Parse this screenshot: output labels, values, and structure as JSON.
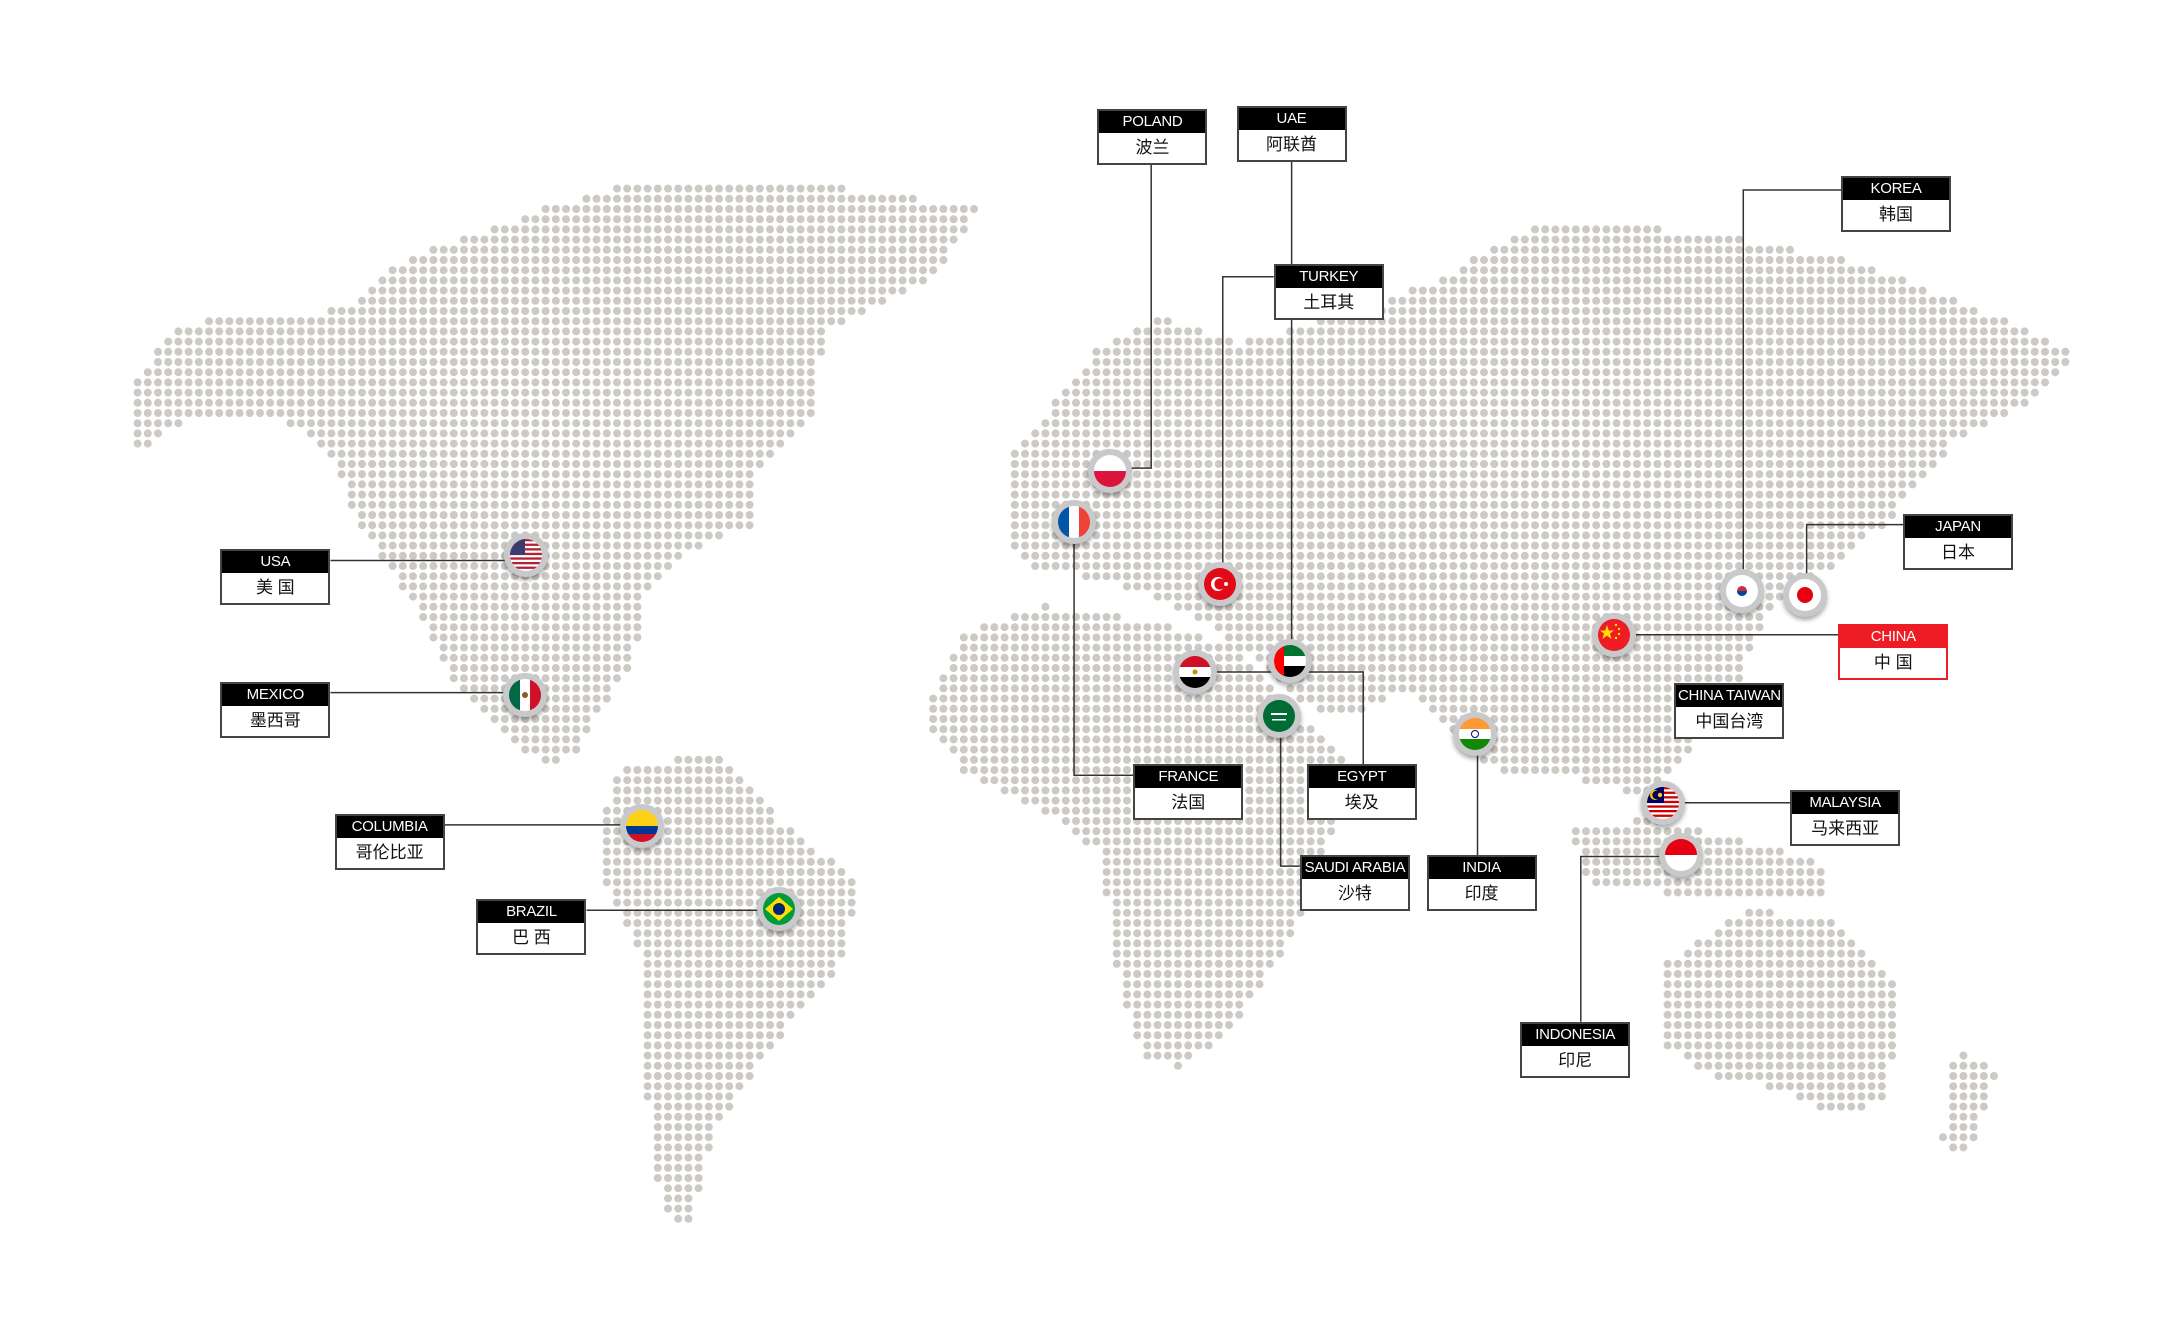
{
  "colors": {
    "dots": "#cdc9c4",
    "label_header": "#000000",
    "highlight": "#ee1c25",
    "pin_ring": "#c9c9cb"
  },
  "countries": [
    {
      "id": "usa",
      "en": "USA",
      "zh": "美 国",
      "icon": "flag-usa-icon"
    },
    {
      "id": "mexico",
      "en": "MEXICO",
      "zh": "墨西哥",
      "icon": "flag-mexico-icon"
    },
    {
      "id": "columbia",
      "en": "COLUMBIA",
      "zh": "哥伦比亚",
      "icon": "flag-colombia-icon"
    },
    {
      "id": "brazil",
      "en": "BRAZIL",
      "zh": "巴 西",
      "icon": "flag-brazil-icon"
    },
    {
      "id": "poland",
      "en": "POLAND",
      "zh": "波兰",
      "icon": "flag-poland-icon"
    },
    {
      "id": "uae",
      "en": "UAE",
      "zh": "阿联酋",
      "icon": "flag-uae-icon"
    },
    {
      "id": "turkey",
      "en": "TURKEY",
      "zh": "土耳其",
      "icon": "flag-turkey-icon"
    },
    {
      "id": "france",
      "en": "FRANCE",
      "zh": "法国",
      "icon": "flag-france-icon"
    },
    {
      "id": "egypt",
      "en": "EGYPT",
      "zh": "埃及",
      "icon": "flag-egypt-icon"
    },
    {
      "id": "saudi",
      "en": "SAUDI ARABIA",
      "zh": "沙特",
      "icon": "flag-saudi-arabia-icon"
    },
    {
      "id": "india",
      "en": "INDIA",
      "zh": "印度",
      "icon": "flag-india-icon"
    },
    {
      "id": "korea",
      "en": "KOREA",
      "zh": "韩国",
      "icon": "flag-korea-icon"
    },
    {
      "id": "japan",
      "en": "JAPAN",
      "zh": "日本",
      "icon": "flag-japan-icon"
    },
    {
      "id": "china",
      "en": "CHINA",
      "zh": "中 国",
      "icon": "flag-china-icon",
      "highlight": true
    },
    {
      "id": "taiwan",
      "en": "CHINA TAIWAN",
      "zh": "中国台湾"
    },
    {
      "id": "malaysia",
      "en": "MALAYSIA",
      "zh": "马来西亚",
      "icon": "flag-malaysia-icon"
    },
    {
      "id": "indonesia",
      "en": "INDONESIA",
      "zh": "印尼",
      "icon": "flag-indonesia-icon"
    }
  ]
}
